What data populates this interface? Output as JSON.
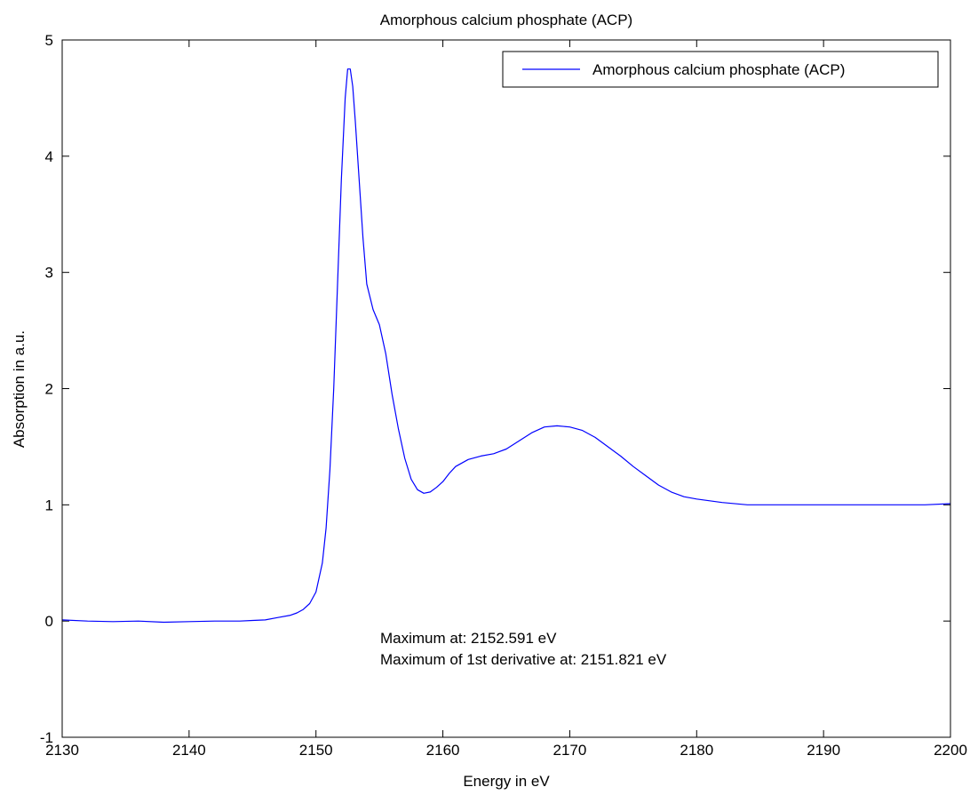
{
  "chart_data": {
    "type": "line",
    "title": "Amorphous calcium phosphate (ACP)",
    "xlabel": "Energy in eV",
    "ylabel": "Absorption in a.u.",
    "xlim": [
      2130,
      2200
    ],
    "ylim": [
      -1,
      5
    ],
    "xticks": [
      2130,
      2140,
      2150,
      2160,
      2170,
      2180,
      2190,
      2200
    ],
    "yticks": [
      -1,
      0,
      1,
      2,
      3,
      4,
      5
    ],
    "grid": false,
    "legend": {
      "position": "top-right",
      "entries": [
        "Amorphous calcium phosphate (ACP)"
      ]
    },
    "annotations": [
      "Maximum at: 2152.591 eV",
      "Maximum of 1st derivative at: 2151.821 eV"
    ],
    "series": [
      {
        "name": "Amorphous calcium phosphate (ACP)",
        "color": "#0000ff",
        "x": [
          2130,
          2132,
          2134,
          2136,
          2138,
          2140,
          2142,
          2144,
          2145,
          2146,
          2147,
          2148,
          2148.5,
          2149,
          2149.5,
          2150,
          2150.5,
          2150.8,
          2151.1,
          2151.4,
          2151.7,
          2152.0,
          2152.3,
          2152.5,
          2152.7,
          2152.9,
          2153.1,
          2153.4,
          2153.7,
          2154.0,
          2154.5,
          2155.0,
          2155.5,
          2156.0,
          2156.5,
          2157.0,
          2157.5,
          2158.0,
          2158.5,
          2159.0,
          2159.5,
          2160.0,
          2160.5,
          2161.0,
          2162.0,
          2163.0,
          2164.0,
          2165.0,
          2166.0,
          2167.0,
          2168.0,
          2169.0,
          2170.0,
          2171.0,
          2172.0,
          2173.0,
          2174.0,
          2175.0,
          2176.0,
          2177.0,
          2178.0,
          2179.0,
          2180.0,
          2182.0,
          2184.0,
          2186.0,
          2188.0,
          2190.0,
          2192.0,
          2194.0,
          2196.0,
          2198.0,
          2200.0
        ],
        "y": [
          0.01,
          0.0,
          -0.005,
          0.0,
          -0.01,
          -0.005,
          0.0,
          0.0,
          0.005,
          0.01,
          0.03,
          0.05,
          0.07,
          0.1,
          0.15,
          0.25,
          0.5,
          0.8,
          1.3,
          2.0,
          2.9,
          3.8,
          4.5,
          4.75,
          4.75,
          4.6,
          4.3,
          3.8,
          3.3,
          2.9,
          2.68,
          2.55,
          2.3,
          1.95,
          1.65,
          1.4,
          1.22,
          1.13,
          1.1,
          1.11,
          1.15,
          1.2,
          1.27,
          1.33,
          1.39,
          1.42,
          1.44,
          1.48,
          1.55,
          1.62,
          1.67,
          1.68,
          1.67,
          1.64,
          1.58,
          1.5,
          1.42,
          1.33,
          1.25,
          1.17,
          1.11,
          1.07,
          1.05,
          1.02,
          1.0,
          1.0,
          1.0,
          1.0,
          1.0,
          1.0,
          1.0,
          1.0,
          1.01
        ]
      }
    ]
  }
}
